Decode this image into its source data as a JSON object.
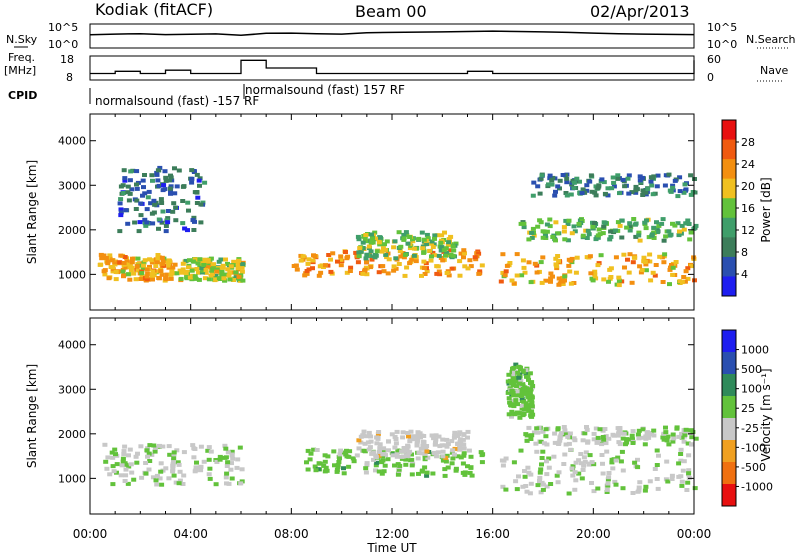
{
  "header": {
    "title": "Kodiak (fitACF)",
    "beam": "Beam 00",
    "date": "02/Apr/2013"
  },
  "strip_labels": {
    "nsky": "N.Sky",
    "freq_line1": "Freq.",
    "freq_line2": "[MHz]",
    "cpid": "CPID",
    "nsearch": "N.Search",
    "nave": "Nave",
    "nsky_ticks": [
      "10^5",
      "10^0"
    ],
    "nsearch_ticks": [
      "10^5",
      "10^0"
    ],
    "freq_ticks": [
      "18",
      "8"
    ],
    "nave_ticks": [
      "60",
      "0"
    ],
    "cpid_segments": [
      {
        "label": "normalsound (fast) -157 RF",
        "start_hour": 0.2
      },
      {
        "label": "normalsound (fast) 157 RF",
        "start_hour": 6.0
      }
    ]
  },
  "colors": {
    "power": [
      "#1e1ef0",
      "#2a4fb0",
      "#3c7d5a",
      "#3f9e6a",
      "#62c23b",
      "#f0c020",
      "#f38f10",
      "#f05a10",
      "#e81010"
    ],
    "velocity": [
      "#1e1ef0",
      "#2a4fb0",
      "#2f8a5a",
      "#62c23b",
      "#c8c8c8",
      "#f0a020",
      "#f07010",
      "#e81010"
    ]
  },
  "chart_data": [
    {
      "type": "line",
      "name": "noise-and-frequency-strips",
      "x": [
        0,
        1,
        2,
        3,
        4,
        5,
        6,
        7,
        8,
        9,
        10,
        11,
        12,
        13,
        14,
        15,
        16,
        17,
        18,
        19,
        20,
        21,
        22,
        23,
        24
      ],
      "series": [
        {
          "name": "N.Sky",
          "values": [
            800,
            1200,
            1500,
            900,
            1100,
            1300,
            600,
            1800,
            2000,
            1500,
            1200,
            2500,
            3000,
            3500,
            4000,
            5000,
            6000,
            5000,
            4000,
            3000,
            2000,
            1500,
            1200,
            1000,
            900
          ]
        },
        {
          "name": "Freq.",
          "values": [
            10.5,
            11.5,
            10.5,
            12,
            10.5,
            10.5,
            16.5,
            13,
            13,
            10.5,
            10.5,
            10.5,
            10.5,
            10.5,
            10.5,
            11.5,
            10.5,
            10.5,
            10.5,
            10.5,
            10.5,
            10.5,
            10.5,
            10.5,
            16.5
          ]
        }
      ]
    },
    {
      "type": "heatmap",
      "title": "",
      "ylabel": "Slant Range [km]",
      "xlabel": "Time UT",
      "xlim": [
        0,
        24
      ],
      "ylim": [
        200,
        4600
      ],
      "xticks": [
        "00:00",
        "04:00",
        "08:00",
        "12:00",
        "16:00",
        "20:00",
        "00:00"
      ],
      "yticks": [
        "1000",
        "2000",
        "3000",
        "4000"
      ],
      "colorbar": {
        "label": "Power [dB]",
        "ticks": [
          "4",
          "8",
          "12",
          "16",
          "20",
          "24",
          "28"
        ],
        "range": [
          0,
          32
        ]
      },
      "bands": [
        {
          "t0": 0.3,
          "t1": 3.5,
          "r0": 900,
          "r1": 1500,
          "value": 22
        },
        {
          "t0": 3.5,
          "t1": 6.0,
          "r0": 900,
          "r1": 1400,
          "value": 18
        },
        {
          "t0": 8.0,
          "t1": 15.5,
          "r0": 1000,
          "r1": 1600,
          "value": 23
        },
        {
          "t0": 10.5,
          "t1": 14.5,
          "r0": 1400,
          "r1": 2000,
          "value": 16
        },
        {
          "t0": 16.2,
          "t1": 24.0,
          "r0": 800,
          "r1": 1500,
          "value": 22
        },
        {
          "t0": 17.0,
          "t1": 24.0,
          "r0": 1800,
          "r1": 2300,
          "value": 14
        },
        {
          "t0": 1.0,
          "t1": 4.5,
          "r0": 2000,
          "r1": 3500,
          "value": 6
        },
        {
          "t0": 17.5,
          "t1": 24.0,
          "r0": 2800,
          "r1": 3300,
          "value": 8
        }
      ]
    },
    {
      "type": "heatmap",
      "title": "",
      "ylabel": "Slant Range [km]",
      "xlabel": "Time UT",
      "xlim": [
        0,
        24
      ],
      "ylim": [
        200,
        4600
      ],
      "xticks": [
        "00:00",
        "04:00",
        "08:00",
        "12:00",
        "16:00",
        "20:00",
        "00:00"
      ],
      "yticks": [
        "1000",
        "2000",
        "3000",
        "4000"
      ],
      "colorbar": {
        "label": "Velocity [m s⁻¹]",
        "ticks": [
          "1000",
          "500",
          "100",
          "25",
          "-25",
          "-100",
          "-500",
          "-1000"
        ],
        "range": [
          -1000,
          1000
        ]
      },
      "bands": [
        {
          "t0": 0.3,
          "t1": 6.0,
          "r0": 900,
          "r1": 1800,
          "value": 0
        },
        {
          "t0": 8.5,
          "t1": 15.5,
          "r0": 1100,
          "r1": 1700,
          "value": 150
        },
        {
          "t0": 10.5,
          "t1": 15.0,
          "r0": 1500,
          "r1": 2100,
          "value": -150
        },
        {
          "t0": 16.2,
          "t1": 24.0,
          "r0": 700,
          "r1": 1700,
          "value": 0
        },
        {
          "t0": 17.0,
          "t1": 24.0,
          "r0": 1800,
          "r1": 2200,
          "value": 0
        },
        {
          "t0": 16.5,
          "t1": 17.5,
          "r0": 2400,
          "r1": 3600,
          "value": 150
        }
      ]
    }
  ]
}
